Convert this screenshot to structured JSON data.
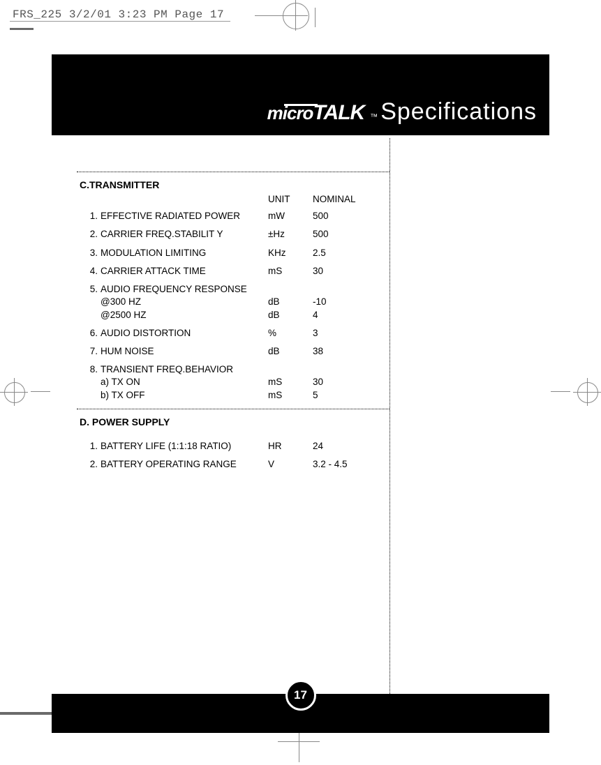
{
  "print_header": "FRS_225  3/2/01  3:23 PM  Page 17",
  "logo": {
    "micro": "micro",
    "talk": "TALK",
    "tm": "™"
  },
  "page_title": "Specifications",
  "page_number": "17",
  "sections": {
    "c": {
      "heading": "C.TRANSMITTER",
      "header_unit": "UNIT",
      "header_nominal": "NOMINAL",
      "rows": [
        {
          "n": "1.",
          "desc": "EFFECTIVE RADIATED POWER",
          "unit": "mW",
          "nom": "500"
        },
        {
          "n": "2.",
          "desc": "CARRIER FREQ.STABILIT Y",
          "unit": "±Hz",
          "nom": "500"
        },
        {
          "n": "3.",
          "desc": "MODULATION LIMITING",
          "unit": "KHz",
          "nom": "2.5"
        },
        {
          "n": "4.",
          "desc": "CARRIER ATTACK TIME",
          "unit": "mS",
          "nom": "30"
        },
        {
          "n": "5.",
          "desc": "AUDIO FREQUENCY RESPONSE",
          "unit": "",
          "nom": "",
          "subs": [
            {
              "desc": "@300 HZ",
              "unit": "dB",
              "nom": "-10"
            },
            {
              "desc": "@2500 HZ",
              "unit": "dB",
              "nom": "4"
            }
          ]
        },
        {
          "n": "6.",
          "desc": "AUDIO DISTORTION",
          "unit": "%",
          "nom": "3"
        },
        {
          "n": "7.",
          "desc": "HUM NOISE",
          "unit": "dB",
          "nom": "38"
        },
        {
          "n": "8.",
          "desc": "TRANSIENT FREQ.BEHAVIOR",
          "unit": "",
          "nom": "",
          "subs": [
            {
              "desc": "a) TX ON",
              "unit": "mS",
              "nom": "30"
            },
            {
              "desc": "b) TX OFF",
              "unit": "mS",
              "nom": "5"
            }
          ]
        }
      ]
    },
    "d": {
      "heading": "D. POWER SUPPLY",
      "rows": [
        {
          "n": "1.",
          "desc": "BATTERY LIFE (1:1:18 RATIO)",
          "unit": "HR",
          "nom": "24"
        },
        {
          "n": "2.",
          "desc": "BATTERY OPERATING RANGE",
          "unit": "V",
          "nom": "3.2 - 4.5"
        }
      ]
    }
  },
  "colors": {
    "band": "#000000",
    "text": "#000000",
    "title_text": "#ffffff",
    "background": "#ffffff"
  },
  "fonts": {
    "body_family": "Arial, sans-serif",
    "title_family": "Verdana, Geneva, sans-serif",
    "mono": "Courier New, monospace",
    "body_size_pt": 10,
    "title_size_pt": 26,
    "heading_weight": 700
  }
}
